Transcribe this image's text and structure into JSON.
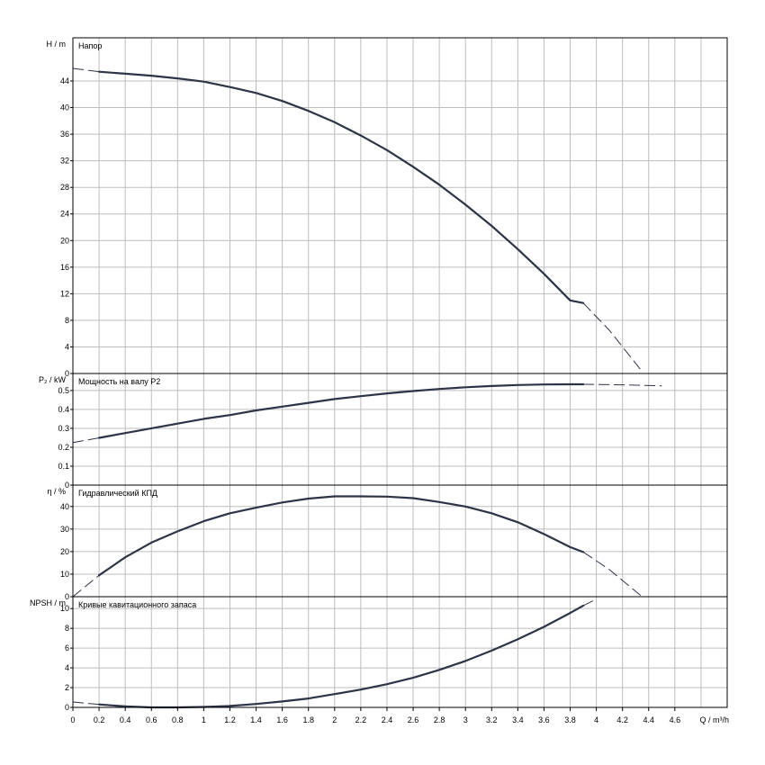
{
  "chart_data": [
    {
      "type": "line",
      "title": "Напор",
      "ylabel": "H / m",
      "ylim": [
        0,
        50.5
      ],
      "yticks": [
        0,
        4,
        8,
        12,
        16,
        20,
        24,
        28,
        32,
        36,
        40,
        44
      ],
      "series": [
        {
          "style": "solid",
          "x": [
            0.2,
            0.4,
            0.6,
            0.8,
            1.0,
            1.2,
            1.4,
            1.6,
            1.8,
            2.0,
            2.2,
            2.4,
            2.6,
            2.8,
            3.0,
            3.2,
            3.4,
            3.6,
            3.8,
            3.9
          ],
          "y": [
            45.4,
            45.1,
            44.8,
            44.4,
            43.9,
            43.1,
            42.2,
            41.0,
            39.5,
            37.8,
            35.8,
            33.6,
            31.1,
            28.4,
            25.4,
            22.2,
            18.7,
            15.0,
            11.0,
            10.6
          ]
        },
        {
          "style": "dashed",
          "x": [
            0.0,
            0.2
          ],
          "y": [
            45.9,
            45.4
          ]
        },
        {
          "style": "dashed",
          "x": [
            3.9,
            4.1,
            4.35
          ],
          "y": [
            10.6,
            6.5,
            0.3
          ]
        }
      ]
    },
    {
      "type": "line",
      "title": "Мощность на валу P2",
      "ylabel": "P₂ / kW",
      "ylim": [
        0,
        0.59
      ],
      "yticks": [
        0,
        0.1,
        0.2,
        0.3,
        0.4,
        0.5
      ],
      "ytick_labels": [
        "0",
        "0.1",
        "0.2",
        "0.3",
        "0.4",
        "0.5"
      ],
      "series": [
        {
          "style": "solid",
          "x": [
            0.2,
            0.4,
            0.6,
            0.8,
            1.0,
            1.2,
            1.4,
            1.6,
            1.8,
            2.0,
            2.2,
            2.4,
            2.6,
            2.8,
            3.0,
            3.2,
            3.4,
            3.6,
            3.8,
            3.9
          ],
          "y": [
            0.25,
            0.275,
            0.3,
            0.325,
            0.35,
            0.37,
            0.395,
            0.415,
            0.435,
            0.455,
            0.47,
            0.485,
            0.497,
            0.508,
            0.517,
            0.524,
            0.529,
            0.532,
            0.533,
            0.533
          ]
        },
        {
          "style": "dashed",
          "x": [
            0.0,
            0.2
          ],
          "y": [
            0.225,
            0.25
          ]
        },
        {
          "style": "dashed",
          "x": [
            3.9,
            4.2,
            4.5
          ],
          "y": [
            0.533,
            0.53,
            0.525
          ]
        }
      ]
    },
    {
      "type": "line",
      "title": "Гидравлический КПД",
      "ylabel": "η / %",
      "ylim": [
        0,
        49.5
      ],
      "yticks": [
        0,
        10,
        20,
        30,
        40
      ],
      "series": [
        {
          "style": "solid",
          "x": [
            0.2,
            0.4,
            0.6,
            0.8,
            1.0,
            1.2,
            1.4,
            1.6,
            1.8,
            2.0,
            2.2,
            2.4,
            2.6,
            2.8,
            3.0,
            3.2,
            3.4,
            3.6,
            3.8,
            3.9
          ],
          "y": [
            9.5,
            17.5,
            24.0,
            29.0,
            33.5,
            37.0,
            39.5,
            41.8,
            43.5,
            44.5,
            44.5,
            44.4,
            43.7,
            42.0,
            40.0,
            37.0,
            33.0,
            27.8,
            22.0,
            19.8
          ]
        },
        {
          "style": "dashed",
          "x": [
            0.0,
            0.2
          ],
          "y": [
            0.0,
            9.5
          ]
        },
        {
          "style": "dashed",
          "x": [
            3.9,
            4.1,
            4.35
          ],
          "y": [
            19.8,
            12.0,
            0.0
          ]
        }
      ]
    },
    {
      "type": "line",
      "title": "Кривые кавитационного запаса",
      "ylabel": "NPSH / m",
      "ylim": [
        0,
        11.2
      ],
      "yticks": [
        0,
        2,
        4,
        6,
        8,
        10
      ],
      "series": [
        {
          "style": "solid",
          "x": [
            0.2,
            0.4,
            0.6,
            0.8,
            1.0,
            1.2,
            1.4,
            1.6,
            1.8,
            2.0,
            2.2,
            2.4,
            2.6,
            2.8,
            3.0,
            3.2,
            3.4,
            3.6,
            3.8,
            3.9
          ],
          "y": [
            0.3,
            0.1,
            0.0,
            0.0,
            0.05,
            0.15,
            0.35,
            0.6,
            0.9,
            1.35,
            1.8,
            2.35,
            3.0,
            3.8,
            4.7,
            5.75,
            6.9,
            8.15,
            9.55,
            10.3
          ]
        },
        {
          "style": "dashed",
          "x": [
            0.0,
            0.2
          ],
          "y": [
            0.55,
            0.3
          ]
        },
        {
          "style": "dashed",
          "x": [
            3.9,
            4.0
          ],
          "y": [
            10.3,
            10.95
          ]
        }
      ]
    }
  ],
  "x_axis": {
    "label": "Q / m³/h",
    "xlim": [
      0,
      5.0
    ],
    "ticks": [
      "0",
      "0.2",
      "0.4",
      "0.6",
      "0.8",
      "1",
      "1.2",
      "1.4",
      "1.6",
      "1.8",
      "2",
      "2.2",
      "2.4",
      "2.6",
      "2.8",
      "3",
      "3.2",
      "3.4",
      "3.6",
      "3.8",
      "4",
      "4.2",
      "4.4",
      "4.6"
    ]
  },
  "colors": {
    "curve": "#2e3447",
    "grid": "#bdbdbd",
    "frame": "#000000"
  }
}
